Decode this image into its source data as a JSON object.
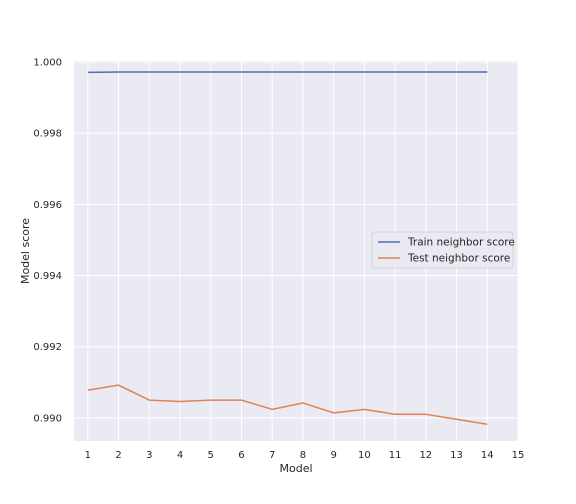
{
  "chart_data": {
    "type": "line",
    "title": "",
    "xlabel": "Model",
    "ylabel": "Model score",
    "x": [
      1,
      2,
      3,
      4,
      5,
      6,
      7,
      8,
      9,
      10,
      11,
      12,
      13,
      14
    ],
    "xticks": [
      1,
      2,
      3,
      4,
      5,
      6,
      7,
      8,
      9,
      10,
      11,
      12,
      13,
      14,
      15
    ],
    "xlim": [
      0.55,
      15.0
    ],
    "yticks": [
      0.99,
      0.992,
      0.994,
      0.996,
      0.998,
      1.0
    ],
    "ytick_labels": [
      "0.990",
      "0.992",
      "0.994",
      "0.996",
      "0.998",
      "1.000"
    ],
    "ylim": [
      0.98935,
      1.00003
    ],
    "grid": true,
    "legend_position": "center-right",
    "series": [
      {
        "name": "Train neighbor score",
        "color": "#4c72b0",
        "values": [
          0.99971,
          0.99972,
          0.99972,
          0.99972,
          0.99972,
          0.99972,
          0.99972,
          0.99972,
          0.99972,
          0.99972,
          0.99972,
          0.99972,
          0.99972,
          0.99972
        ]
      },
      {
        "name": "Test neighbor score",
        "color": "#dd8452",
        "values": [
          0.99078,
          0.99092,
          0.9905,
          0.99046,
          0.9905,
          0.9905,
          0.99024,
          0.99042,
          0.99014,
          0.99024,
          0.9901,
          0.9901,
          0.98996,
          0.98982
        ]
      }
    ]
  }
}
